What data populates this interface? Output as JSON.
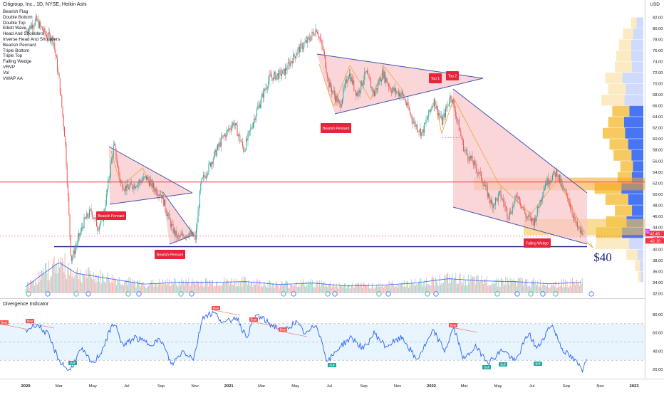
{
  "header": {
    "title": "Citigroup, Inc., 1D, NYSE, Heikin Ashi",
    "currency": "USD"
  },
  "indicators": [
    "Bearish Flag",
    "Double Bottom",
    "Double Top",
    "Elliott Wave",
    "Head And Shoulders",
    "Inverse Head And Shoulders",
    "Bearish Pennant",
    "Triple Bottom",
    "Triple Top",
    "Falling Wedge",
    "VRVP",
    "Vol",
    "VWAP AA"
  ],
  "oscillator": {
    "title": "Divergence Indicator",
    "ticks": [
      "80.00",
      "60.00",
      "40.00",
      "20.00"
    ],
    "tick_values": [
      80,
      60,
      40,
      20
    ],
    "band": [
      30,
      70
    ],
    "bear_label": "Bear",
    "bull_label": "Bull"
  },
  "price_axis": {
    "ticks": [
      "82.00",
      "80.00",
      "78.00",
      "76.00",
      "74.00",
      "72.00",
      "70.00",
      "68.00",
      "66.00",
      "64.00",
      "62.00",
      "60.00",
      "58.00",
      "56.00",
      "54.00",
      "52.00",
      "50.00",
      "48.00",
      "46.00",
      "44.00",
      "42.00",
      "40.00",
      "38.00",
      "36.00",
      "34.00",
      "32.00"
    ],
    "tick_values": [
      82,
      80,
      78,
      76,
      74,
      72,
      70,
      68,
      66,
      64,
      62,
      60,
      58,
      56,
      54,
      52,
      50,
      48,
      46,
      44,
      42,
      40,
      38,
      36,
      34,
      32
    ],
    "last_price": "42.45",
    "last_change": "-42.19",
    "last_marker": "C"
  },
  "time_axis": {
    "ticks": [
      "2020",
      "Mar",
      "May",
      "Jul",
      "Sep",
      "Nov",
      "2021",
      "Mar",
      "May",
      "Jul",
      "Sep",
      "Nov",
      "2022",
      "Mar",
      "May",
      "Jul",
      "Sep",
      "Nov",
      "2023"
    ]
  },
  "annotations": {
    "pennant_labels": [
      "Bearish Pennant",
      "Bearish Pennant",
      "Bearish Pennant"
    ],
    "top1": "Top 1",
    "top2": "Top 2",
    "wedge_label": "Falling Wedge",
    "target": "$40"
  },
  "colors": {
    "up": "#26a69a",
    "down": "#ef5350",
    "pattern_fill": "#f8c8cc",
    "pattern_line": "#3f51b5",
    "resistance": "#f23645",
    "label_bg": "#e8243c",
    "osc_line": "#2962ff",
    "vrvp_up": "#3d6ef3",
    "vrvp_down": "#f5c44f"
  },
  "chart_data": {
    "type": "candlestick",
    "title": "Citigroup, Inc., 1D, NYSE, Heikin Ashi",
    "xlabel": "",
    "ylabel": "USD",
    "ylim": [
      32,
      83
    ],
    "x_range": [
      "2020-01",
      "2023-01"
    ],
    "price_path": [
      [
        "2020-01-02",
        79.5
      ],
      [
        "2020-01-20",
        81.5
      ],
      [
        "2020-02-05",
        79.0
      ],
      [
        "2020-02-20",
        78.0
      ],
      [
        "2020-03-02",
        70.0
      ],
      [
        "2020-03-12",
        60.0
      ],
      [
        "2020-03-23",
        38.0
      ],
      [
        "2020-04-02",
        41.0
      ],
      [
        "2020-04-15",
        45.0
      ],
      [
        "2020-04-28",
        47.0
      ],
      [
        "2020-05-10",
        44.0
      ],
      [
        "2020-05-20",
        46.0
      ],
      [
        "2020-06-08",
        59.0
      ],
      [
        "2020-06-20",
        52.0
      ],
      [
        "2020-07-01",
        51.0
      ],
      [
        "2020-07-20",
        52.0
      ],
      [
        "2020-08-05",
        53.0
      ],
      [
        "2020-08-20",
        51.0
      ],
      [
        "2020-09-01",
        50.0
      ],
      [
        "2020-09-20",
        44.0
      ],
      [
        "2020-10-01",
        42.0
      ],
      [
        "2020-10-20",
        43.0
      ],
      [
        "2020-11-02",
        42.0
      ],
      [
        "2020-11-12",
        52.0
      ],
      [
        "2020-12-01",
        56.0
      ],
      [
        "2020-12-20",
        60.0
      ],
      [
        "2021-01-10",
        63.0
      ],
      [
        "2021-01-28",
        58.0
      ],
      [
        "2021-02-20",
        65.0
      ],
      [
        "2021-03-15",
        71.0
      ],
      [
        "2021-04-10",
        72.0
      ],
      [
        "2021-05-05",
        76.0
      ],
      [
        "2021-05-25",
        78.0
      ],
      [
        "2021-06-08",
        80.0
      ],
      [
        "2021-06-20",
        76.0
      ],
      [
        "2021-06-30",
        70.0
      ],
      [
        "2021-07-20",
        66.0
      ],
      [
        "2021-08-05",
        72.0
      ],
      [
        "2021-08-20",
        68.0
      ],
      [
        "2021-09-05",
        72.0
      ],
      [
        "2021-09-20",
        68.0
      ],
      [
        "2021-10-05",
        72.0
      ],
      [
        "2021-10-20",
        69.0
      ],
      [
        "2021-11-10",
        68.0
      ],
      [
        "2021-11-30",
        63.0
      ],
      [
        "2021-12-15",
        61.0
      ],
      [
        "2022-01-05",
        67.0
      ],
      [
        "2022-01-20",
        63.0
      ],
      [
        "2022-02-05",
        68.0
      ],
      [
        "2022-02-15",
        64.0
      ],
      [
        "2022-03-01",
        58.0
      ],
      [
        "2022-03-15",
        56.0
      ],
      [
        "2022-04-01",
        53.0
      ],
      [
        "2022-04-20",
        48.0
      ],
      [
        "2022-05-05",
        50.0
      ],
      [
        "2022-05-20",
        46.0
      ],
      [
        "2022-06-05",
        50.0
      ],
      [
        "2022-06-20",
        46.0
      ],
      [
        "2022-07-05",
        45.0
      ],
      [
        "2022-07-25",
        52.0
      ],
      [
        "2022-08-15",
        54.0
      ],
      [
        "2022-08-25",
        51.0
      ],
      [
        "2022-09-05",
        49.0
      ],
      [
        "2022-09-20",
        44.0
      ],
      [
        "2022-10-01",
        42.5
      ]
    ],
    "support_level": 40.5,
    "resistance_level": 52.2,
    "target_price": 40,
    "last_price": 42.45,
    "volume_profile": {
      "price_bins": [
        81,
        79,
        77,
        75,
        73,
        71,
        69,
        67,
        65,
        63,
        61,
        59,
        57,
        55,
        53,
        51,
        49,
        47,
        45,
        43,
        41,
        39,
        37,
        35
      ],
      "up_share": [
        0.55,
        0.5,
        0.5,
        0.45,
        0.4,
        0.55,
        0.5,
        0.45,
        0.45,
        0.55,
        0.45,
        0.45,
        0.4,
        0.45,
        0.45,
        0.45,
        0.4,
        0.4,
        0.45,
        0.45,
        0.3,
        0.35,
        0.4,
        0.45
      ],
      "total": [
        0.18,
        0.3,
        0.36,
        0.4,
        0.42,
        0.56,
        0.52,
        0.62,
        0.46,
        0.52,
        0.6,
        0.5,
        0.44,
        0.34,
        0.38,
        0.72,
        0.56,
        0.42,
        0.55,
        0.7,
        0.7,
        0.25,
        0.12,
        0.08
      ]
    },
    "volume_path": [
      [
        "2020-01",
        0.18
      ],
      [
        "2020-03",
        0.85
      ],
      [
        "2020-04",
        0.55
      ],
      [
        "2020-06",
        0.4
      ],
      [
        "2020-08",
        0.25
      ],
      [
        "2020-10",
        0.3
      ],
      [
        "2020-12",
        0.3
      ],
      [
        "2021-02",
        0.32
      ],
      [
        "2021-04",
        0.24
      ],
      [
        "2021-06",
        0.28
      ],
      [
        "2021-08",
        0.2
      ],
      [
        "2021-10",
        0.22
      ],
      [
        "2021-12",
        0.28
      ],
      [
        "2022-02",
        0.4
      ],
      [
        "2022-04",
        0.34
      ],
      [
        "2022-06",
        0.32
      ],
      [
        "2022-08",
        0.26
      ],
      [
        "2022-10",
        0.3
      ]
    ],
    "oscillator_path": [
      [
        "2020-01",
        62
      ],
      [
        "2020-01-20",
        70
      ],
      [
        "2020-02-10",
        58
      ],
      [
        "2020-03-01",
        30
      ],
      [
        "2020-03-20",
        18
      ],
      [
        "2020-04-10",
        42
      ],
      [
        "2020-05-01",
        26
      ],
      [
        "2020-05-15",
        38
      ],
      [
        "2020-06-08",
        72
      ],
      [
        "2020-06-25",
        45
      ],
      [
        "2020-07-15",
        55
      ],
      [
        "2020-08-10",
        48
      ],
      [
        "2020-09-01",
        52
      ],
      [
        "2020-09-20",
        25
      ],
      [
        "2020-10-10",
        40
      ],
      [
        "2020-10-30",
        32
      ],
      [
        "2020-11-15",
        78
      ],
      [
        "2020-12-05",
        82
      ],
      [
        "2020-12-25",
        70
      ],
      [
        "2021-01-15",
        78
      ],
      [
        "2021-02-01",
        55
      ],
      [
        "2021-02-20",
        80
      ],
      [
        "2021-03-15",
        70
      ],
      [
        "2021-04-10",
        62
      ],
      [
        "2021-05-01",
        72
      ],
      [
        "2021-05-20",
        58
      ],
      [
        "2021-06-08",
        70
      ],
      [
        "2021-06-28",
        28
      ],
      [
        "2021-07-20",
        45
      ],
      [
        "2021-08-10",
        55
      ],
      [
        "2021-09-01",
        42
      ],
      [
        "2021-09-20",
        60
      ],
      [
        "2021-10-10",
        45
      ],
      [
        "2021-11-10",
        55
      ],
      [
        "2021-12-05",
        30
      ],
      [
        "2022-01-05",
        62
      ],
      [
        "2022-01-25",
        40
      ],
      [
        "2022-02-10",
        66
      ],
      [
        "2022-03-01",
        30
      ],
      [
        "2022-03-20",
        45
      ],
      [
        "2022-04-15",
        28
      ],
      [
        "2022-05-10",
        42
      ],
      [
        "2022-06-01",
        28
      ],
      [
        "2022-06-25",
        60
      ],
      [
        "2022-07-10",
        42
      ],
      [
        "2022-08-05",
        70
      ],
      [
        "2022-08-25",
        42
      ],
      [
        "2022-09-15",
        30
      ],
      [
        "2022-09-30",
        20
      ],
      [
        "2022-10-08",
        35
      ]
    ]
  }
}
